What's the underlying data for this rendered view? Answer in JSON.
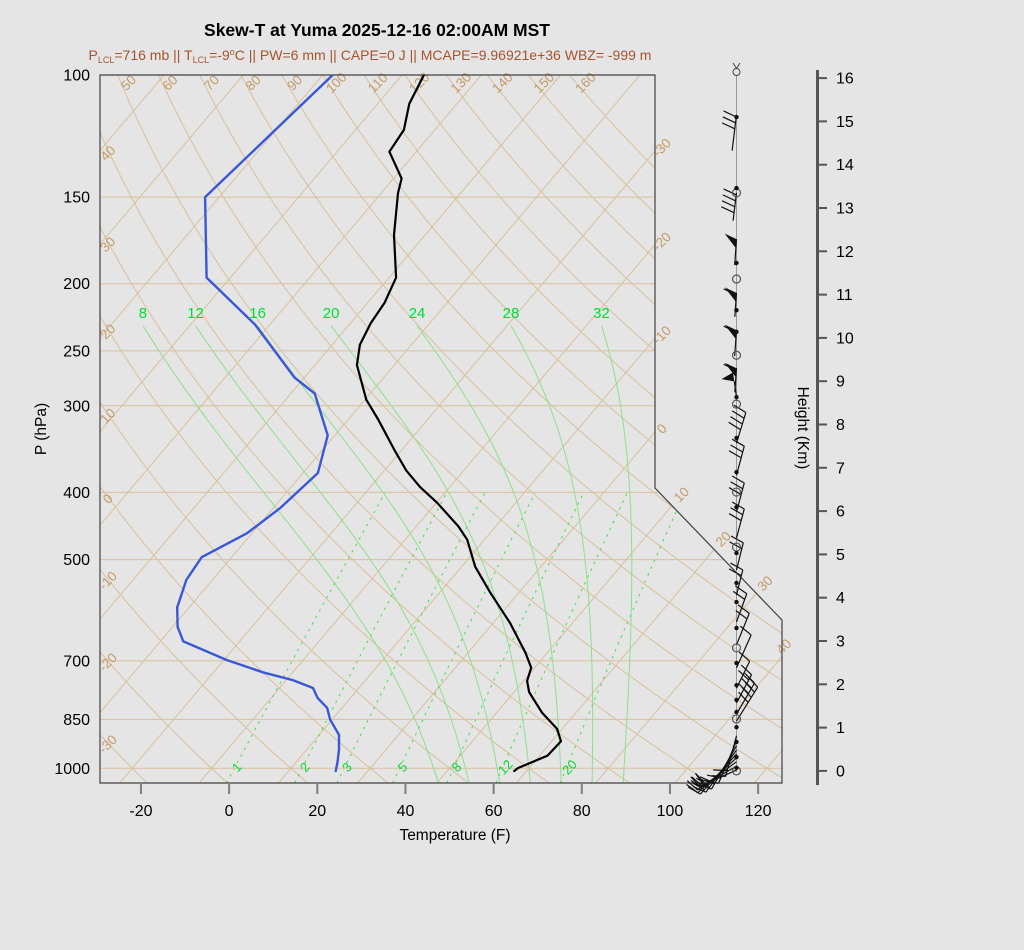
{
  "title": "Skew-T at Yuma 2025-12-16 02:00AM MST",
  "subtitle_parts": [
    {
      "t": "P"
    },
    {
      "sub": "LCL"
    },
    {
      "t": "=716 mb || T"
    },
    {
      "sub": "LCL"
    },
    {
      "t": "=-9"
    },
    {
      "sup": "o"
    },
    {
      "t": "C || PW=6 mm || CAPE=0 J || MCAPE=9.96921e+36 WBZ= -999 m"
    }
  ],
  "colors": {
    "background": "#e5e5e5",
    "frame": "#404040",
    "grid_tan": "#d8c09c",
    "grid_tan_label": "#c49b68",
    "green_line": "#8ce08c",
    "green_dashed": "#46dc46",
    "green_label": "#00dc32",
    "temperature_curve": "#000000",
    "dewpoint_curve": "#3a57d8",
    "axis_gray": "#555555",
    "tick_gray": "#7f7f7f",
    "subtitle": "#a5542e",
    "staff": "#999999",
    "barb": "#111111"
  },
  "axes": {
    "pressure_label": "P (hPa)",
    "pressure_ticks": [
      100,
      150,
      200,
      250,
      300,
      400,
      500,
      700,
      850,
      1000
    ],
    "temp_label": "Temperature (F)",
    "temp_ticks": [
      -20,
      0,
      20,
      40,
      60,
      80,
      100,
      120
    ],
    "height_label": "Height (Km)",
    "height_ticks": [
      0,
      1,
      2,
      3,
      4,
      5,
      6,
      7,
      8,
      9,
      10,
      11,
      12,
      13,
      14,
      15,
      16
    ]
  },
  "grid": {
    "isobar_lines_hPa": [
      150,
      200,
      250,
      300,
      400,
      500,
      700,
      850,
      1000
    ],
    "isotherms_C": {
      "start": -110,
      "end": 50,
      "step": 10
    },
    "isotherm_edge_labels_C": [
      -30,
      -20,
      -10,
      0,
      10,
      20,
      30,
      40
    ],
    "dry_adiabats_C": {
      "start": -30,
      "end": 160,
      "step": 10
    },
    "dry_adiabat_labels_left_C": [
      -30,
      -20,
      -10,
      0,
      10,
      20,
      30,
      40
    ],
    "dry_adiabat_labels_top_C": [
      50,
      60,
      70,
      80,
      90,
      100,
      110,
      120,
      130,
      140,
      150,
      160
    ],
    "moist_adiabats_C": [
      8,
      12,
      16,
      20,
      24,
      28,
      32
    ],
    "mixing_ratio_g_kg": [
      1,
      2,
      3,
      5,
      8,
      12,
      20
    ]
  },
  "chart_data": {
    "type": "line",
    "subtype": "skewt-log-p-sounding",
    "title": "Skew-T at Yuma 2025-12-16 02:00AM MST",
    "xlabel": "Temperature (F)",
    "ylabel_left": "P (hPa)",
    "ylabel_right": "Height (Km)",
    "x_range_F": [
      -29,
      125
    ],
    "p_range_hPa": [
      100,
      1050
    ],
    "temperature_series_p_F": [
      [
        100,
        -89
      ],
      [
        110,
        -86.8
      ],
      [
        120,
        -83
      ],
      [
        129,
        -82.1
      ],
      [
        141,
        -74.2
      ],
      [
        148,
        -72.2
      ],
      [
        170,
        -65.1
      ],
      [
        196,
        -56.4
      ],
      [
        213,
        -54.2
      ],
      [
        228,
        -53.4
      ],
      [
        245,
        -51.7
      ],
      [
        262,
        -48.5
      ],
      [
        294,
        -39.7
      ],
      [
        314,
        -33.2
      ],
      [
        348,
        -23.5
      ],
      [
        372,
        -17
      ],
      [
        393,
        -10.7
      ],
      [
        414,
        -3.8
      ],
      [
        448,
        5.6
      ],
      [
        468,
        10.1
      ],
      [
        512,
        17.1
      ],
      [
        558,
        25.5
      ],
      [
        617,
        35.8
      ],
      [
        681,
        45
      ],
      [
        716,
        49.2
      ],
      [
        748,
        50.8
      ],
      [
        776,
        53.4
      ],
      [
        832,
        60.4
      ],
      [
        877,
        66.8
      ],
      [
        914,
        70.1
      ],
      [
        959,
        69.8
      ],
      [
        999,
        65.5
      ],
      [
        1009,
        65.2
      ]
    ],
    "dewpoint_series_p_F": [
      [
        100,
        -109.7
      ],
      [
        150,
        -115.2
      ],
      [
        196,
        -99.4
      ],
      [
        229,
        -79.4
      ],
      [
        273,
        -60.3
      ],
      [
        288,
        -52.6
      ],
      [
        331,
        -41.6
      ],
      [
        375,
        -36.6
      ],
      [
        421,
        -38.4
      ],
      [
        458,
        -41.1
      ],
      [
        496,
        -46.8
      ],
      [
        535,
        -45.9
      ],
      [
        586,
        -42.7
      ],
      [
        625,
        -38.9
      ],
      [
        656,
        -34.8
      ],
      [
        698,
        -21.3
      ],
      [
        727,
        -10.8
      ],
      [
        746,
        -2.5
      ],
      [
        766,
        3.6
      ],
      [
        792,
        6.6
      ],
      [
        818,
        10.6
      ],
      [
        851,
        13.6
      ],
      [
        895,
        18.5
      ],
      [
        941,
        21.4
      ],
      [
        982,
        23.5
      ],
      [
        1009,
        24.7
      ]
    ],
    "wind_profile": {
      "staff_dots_km": [
        15.1,
        13.46,
        11.73,
        10.64,
        10.14,
        8.63,
        7.69,
        6.9,
        6.09,
        5.03,
        4.34,
        3.9,
        3.3,
        2.49,
        1.98,
        1.64,
        1.36,
        1.01,
        0.67,
        0.32,
        0.07
      ],
      "staff_circles_km": [
        16.14,
        13.35,
        11.36,
        9.6,
        8.47,
        6.44,
        5.17,
        2.84,
        1.2,
        0.0
      ],
      "barbs": [
        {
          "km": 15.15,
          "ang": 187,
          "len": 36,
          "f": 3,
          "fa": 295,
          "at": "start"
        },
        {
          "km": 13.35,
          "ang": 187,
          "len": 28,
          "f": 4,
          "fa": 295,
          "at": "start"
        },
        {
          "km": 12.28,
          "ang": 184,
          "len": 26,
          "f": 0,
          "p": 1,
          "fa": 295,
          "at": "start"
        },
        {
          "km": 11.04,
          "ang": 184,
          "len": 24,
          "f": 1,
          "p": 1,
          "fa": 295,
          "at": "start"
        },
        {
          "km": 10.18,
          "ang": 184,
          "len": 26,
          "f": 1,
          "p": 1,
          "fa": 295,
          "at": "start"
        },
        {
          "km": 9.3,
          "ang": 184,
          "len": 24,
          "f": 1,
          "p": 1,
          "fa": 295,
          "at": "start"
        },
        {
          "km": 8.63,
          "ang": 352,
          "len": 16,
          "f": 0,
          "p": 1,
          "fa": 280,
          "at": "end"
        },
        {
          "km": 7.57,
          "ang": 17,
          "len": 32,
          "f": 4,
          "fa": -58,
          "at": "end"
        },
        {
          "km": 6.83,
          "ang": 15,
          "len": 30,
          "f": 3,
          "fa": -60,
          "at": "end"
        },
        {
          "km": 5.98,
          "ang": 15,
          "len": 30,
          "f": 3,
          "fa": -60,
          "at": "end"
        },
        {
          "km": 5.38,
          "ang": 15,
          "len": 30,
          "f": 3,
          "fa": -60,
          "at": "end"
        },
        {
          "km": 4.64,
          "ang": 14,
          "len": 28,
          "f": 2,
          "fa": -61,
          "at": "end"
        },
        {
          "km": 4.06,
          "ang": 14,
          "len": 26,
          "f": 2,
          "fa": -61,
          "at": "end"
        },
        {
          "km": 3.44,
          "ang": 20,
          "len": 30,
          "f": 2,
          "fa": -55,
          "at": "end"
        },
        {
          "km": 2.91,
          "ang": 22,
          "len": 34,
          "f": 2,
          "fa": -53,
          "at": "end"
        },
        {
          "km": 2.38,
          "ang": 24,
          "len": 36,
          "f": 1,
          "fa": -51,
          "at": "end"
        },
        {
          "km": 1.91,
          "ang": 26,
          "len": 30,
          "f": 1,
          "fa": -49,
          "at": "end"
        },
        {
          "km": 1.57,
          "ang": 28,
          "len": 32,
          "f": 2,
          "fa": -47,
          "at": "end"
        },
        {
          "km": 1.31,
          "ang": 30,
          "len": 36,
          "f": 3,
          "fa": -45,
          "at": "end"
        },
        {
          "km": 1.15,
          "ang": 32,
          "len": 40,
          "f": 4,
          "fa": -43,
          "at": "end"
        },
        {
          "km": 0.81,
          "ang": 195,
          "len": 42,
          "f": 2,
          "fa": 273,
          "at": "end"
        },
        {
          "km": 0.69,
          "ang": 203,
          "len": 46,
          "f": 2,
          "fa": 281,
          "at": "end"
        },
        {
          "km": 0.58,
          "ang": 210,
          "len": 50,
          "f": 2,
          "fa": 288,
          "at": "end"
        },
        {
          "km": 0.48,
          "ang": 216,
          "len": 52,
          "f": 3,
          "fa": 294,
          "at": "end"
        },
        {
          "km": 0.39,
          "ang": 222,
          "len": 54,
          "f": 3,
          "fa": 300,
          "at": "end"
        },
        {
          "km": 0.3,
          "ang": 228,
          "len": 52,
          "f": 2,
          "fa": 306,
          "at": "end"
        },
        {
          "km": 0.21,
          "ang": 234,
          "len": 48,
          "f": 2,
          "fa": 312,
          "at": "end"
        },
        {
          "km": 0.11,
          "ang": 240,
          "len": 42,
          "f": 2,
          "fa": 318,
          "at": "end"
        },
        {
          "km": 0.02,
          "ang": 246,
          "len": 36,
          "f": 1,
          "fa": 324,
          "at": "end"
        }
      ]
    },
    "layout_hints": {
      "grid": "skewed isotherms + curved dry adiabats (tan), moist adiabats (green solid), mixing ratio (green dashed)",
      "legend": "none",
      "frame_cut": "upper-right corner of plot frame is cut away for wind-barb column"
    }
  }
}
